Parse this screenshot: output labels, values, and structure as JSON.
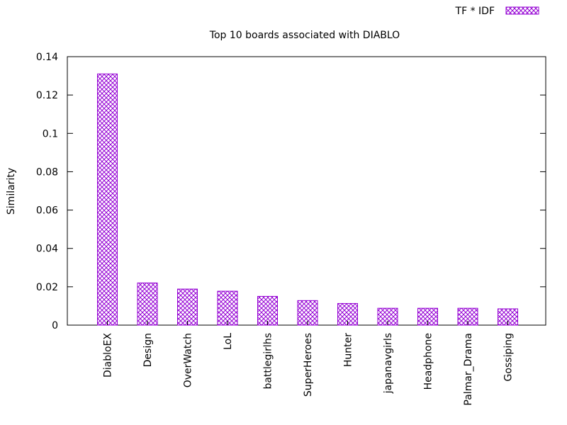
{
  "chart_data": {
    "type": "bar",
    "title": "Top 10 boards associated with DIABLO",
    "xlabel": "",
    "ylabel": "Similarity",
    "ylim": [
      0,
      0.14
    ],
    "yticks": [
      "0",
      "0.02",
      "0.04",
      "0.06",
      "0.08",
      "0.1",
      "0.12",
      "0.14"
    ],
    "grid": false,
    "legend_position": "top-right",
    "categories": [
      "DiabloEX",
      "Design",
      "OverWatch",
      "LoL",
      "battlegirlhs",
      "SuperHeroes",
      "Hunter",
      "japanavgirls",
      "Headphone",
      "Palmar_Drama",
      "Gossiping"
    ],
    "series": [
      {
        "name": "TF * IDF",
        "color": "#9400d3",
        "pattern": "crosshatch",
        "values": [
          0.131,
          0.022,
          0.0188,
          0.0177,
          0.015,
          0.0128,
          0.0113,
          0.0088,
          0.0088,
          0.0088,
          0.0085
        ]
      }
    ]
  }
}
